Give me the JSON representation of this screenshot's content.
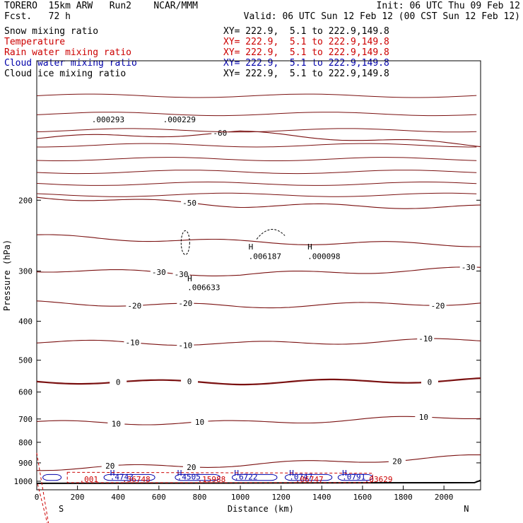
{
  "header": {
    "model": "TORERO  15km ARW   Run2    NCAR/MMM",
    "init": "Init: 06 UTC Thu 09 Feb 12",
    "fcst": "Fcst.   72 h",
    "valid": "Valid: 06 UTC Sun 12 Feb 12 (00 CST Sun 12 Feb 12)"
  },
  "fields": [
    {
      "label": "Snow mixing ratio",
      "xy": "XY= 222.9,  5.1 to 222.9,149.8",
      "color": "#000000"
    },
    {
      "label": "Temperature",
      "xy": "XY= 222.9,  5.1 to 222.9,149.8",
      "color": "#cc0000"
    },
    {
      "label": "Rain water mixing ratio",
      "xy": "XY= 222.9,  5.1 to 222.9,149.8",
      "color": "#cc0000"
    },
    {
      "label": "Cloud water mixing ratio",
      "xy": "XY= 222.9,  5.1 to 222.9,149.8",
      "color": "#0000aa"
    },
    {
      "label": "Cloud ice mixing ratio",
      "xy": "XY= 222.9,  5.1 to 222.9,149.8",
      "color": "#000000"
    }
  ],
  "chart_data": {
    "type": "line",
    "title": "",
    "xlabel": "Distance (km)",
    "ylabel": "Pressure (hPa)",
    "xlim": [
      0,
      2180
    ],
    "ylim": [
      1050,
      90
    ],
    "y_scale": "log",
    "x_ticks": [
      0,
      200,
      400,
      600,
      800,
      1000,
      1200,
      1400,
      1600,
      1800,
      2000
    ],
    "y_ticks": [
      200,
      300,
      400,
      500,
      600,
      700,
      800,
      900,
      1000
    ],
    "x_end_labels": {
      "left": "S",
      "right": "N"
    },
    "temperature_contours": [
      {
        "value": -60,
        "color": "#7a1010",
        "x": [
          0,
          1000,
          2180
        ],
        "y": [
          140,
          136,
          146
        ],
        "labels": [
          {
            "text": "-60",
            "x": 900
          }
        ]
      },
      {
        "value": -50,
        "color": "#7a1010",
        "x": [
          0,
          1000,
          2180
        ],
        "y": [
          196,
          206,
          208
        ],
        "labels": [
          {
            "text": "-50",
            "x": 750
          }
        ]
      },
      {
        "value": -40,
        "color": "#7a1010",
        "x": [
          0,
          1000,
          2180
        ],
        "y": [
          246,
          254,
          258
        ],
        "labels": []
      },
      {
        "value": -30,
        "color": "#7a1010",
        "x": [
          0,
          1000,
          2180
        ],
        "y": [
          298,
          306,
          296
        ],
        "labels": [
          {
            "text": "-30",
            "x": 600
          },
          {
            "text": "-30",
            "x": 710
          },
          {
            "text": "-30",
            "x": 2120
          }
        ]
      },
      {
        "value": -20,
        "color": "#7a1010",
        "x": [
          0,
          1000,
          2180
        ],
        "y": [
          360,
          367,
          360
        ],
        "labels": [
          {
            "text": "-20",
            "x": 480
          },
          {
            "text": "-20",
            "x": 730
          },
          {
            "text": "-20",
            "x": 1970
          }
        ]
      },
      {
        "value": -10,
        "color": "#7a1010",
        "x": [
          0,
          1000,
          2180
        ],
        "y": [
          450,
          455,
          445
        ],
        "labels": [
          {
            "text": "-10",
            "x": 470
          },
          {
            "text": "-10",
            "x": 730
          },
          {
            "text": "-10",
            "x": 1910
          }
        ]
      },
      {
        "value": 0,
        "color": "#7a1010",
        "x": [
          0,
          1000,
          2180
        ],
        "y": [
          565,
          568,
          560
        ],
        "bold": true,
        "labels": [
          {
            "text": "0",
            "x": 400
          },
          {
            "text": "0",
            "x": 750
          },
          {
            "text": "0",
            "x": 1930
          }
        ]
      },
      {
        "value": 10,
        "color": "#7a1010",
        "x": [
          0,
          1000,
          2180
        ],
        "y": [
          715,
          715,
          690
        ],
        "labels": [
          {
            "text": "10",
            "x": 390
          },
          {
            "text": "10",
            "x": 800
          },
          {
            "text": "10",
            "x": 1900
          }
        ]
      },
      {
        "value": 20,
        "color": "#7a1010",
        "x": [
          0,
          1000,
          2180
        ],
        "y": [
          930,
          910,
          868
        ],
        "labels": [
          {
            "text": "20",
            "x": 360
          },
          {
            "text": "20",
            "x": 760
          },
          {
            "text": "20",
            "x": 1770
          }
        ]
      }
    ],
    "annotations": [
      {
        "text": "H",
        "x": 1040,
        "y": 265
      },
      {
        "text": ".006187",
        "x": 1040,
        "y": 280
      },
      {
        "text": "H",
        "x": 1330,
        "y": 265
      },
      {
        "text": ".000098",
        "x": 1330,
        "y": 280
      },
      {
        "text": "H",
        "x": 740,
        "y": 318
      },
      {
        "text": ".006633",
        "x": 740,
        "y": 335
      },
      {
        "text": ".000293",
        "x": 270,
        "y": 128
      },
      {
        "text": ".000229",
        "x": 620,
        "y": 128
      }
    ],
    "cloud_water_labels": [
      {
        "text": "H",
        "x": 360
      },
      {
        "text": ".4743",
        "x": 360
      },
      {
        "text": "H",
        "x": 690
      },
      {
        "text": ".4505",
        "x": 690
      },
      {
        "text": "H",
        "x": 970
      },
      {
        "text": ".6722",
        "x": 970
      },
      {
        "text": "H",
        "x": 1500
      },
      {
        "text": ".0791",
        "x": 1500
      },
      {
        "text": "H",
        "x": 1240
      },
      {
        "text": ".0747",
        "x": 1240
      }
    ],
    "rain_labels": [
      {
        "text": ".001",
        "x": 210
      },
      {
        "text": ".36748",
        "x": 420
      },
      {
        "text": ".15988",
        "x": 790
      },
      {
        "text": ".06747",
        "x": 1270
      },
      {
        "text": ".03629",
        "x": 1610
      }
    ]
  }
}
